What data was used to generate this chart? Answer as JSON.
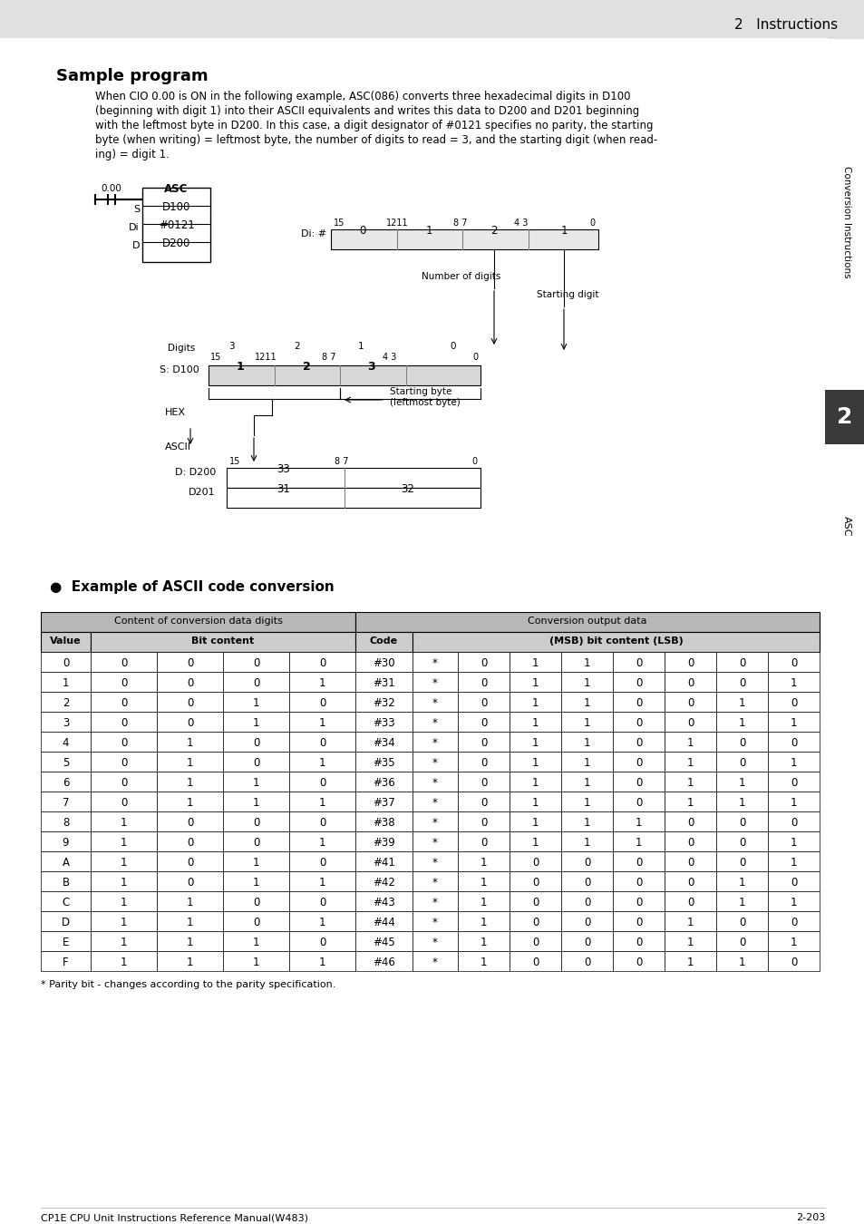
{
  "page_title": "2   Instructions",
  "section_title": "Sample program",
  "body_text_lines": [
    "When CIO 0.00 is ON in the following example, ASC(086) converts three hexadecimal digits in D100",
    "(beginning with digit 1) into their ASCII equivalents and writes this data to D200 and D201 beginning",
    "with the leftmost byte in D200. In this case, a digit designator of #0121 specifies no parity, the starting",
    "byte (when writing) = leftmost byte, the number of digits to read = 3, and the starting digit (when read-",
    "ing) = digit 1."
  ],
  "section2_title": "  Example of ASCII code conversion",
  "table_header1": "Content of conversion data digits",
  "table_header2": "Conversion output data",
  "table_subheader2": "Bit content",
  "table_subheader3": "Code",
  "table_subheader4": "(MSB) bit content (LSB)",
  "table_rows": [
    [
      "0",
      "0",
      "0",
      "0",
      "0",
      "#30",
      "*",
      "0",
      "1",
      "1",
      "0",
      "0",
      "0",
      "0"
    ],
    [
      "1",
      "0",
      "0",
      "0",
      "1",
      "#31",
      "*",
      "0",
      "1",
      "1",
      "0",
      "0",
      "0",
      "1"
    ],
    [
      "2",
      "0",
      "0",
      "1",
      "0",
      "#32",
      "*",
      "0",
      "1",
      "1",
      "0",
      "0",
      "1",
      "0"
    ],
    [
      "3",
      "0",
      "0",
      "1",
      "1",
      "#33",
      "*",
      "0",
      "1",
      "1",
      "0",
      "0",
      "1",
      "1"
    ],
    [
      "4",
      "0",
      "1",
      "0",
      "0",
      "#34",
      "*",
      "0",
      "1",
      "1",
      "0",
      "1",
      "0",
      "0"
    ],
    [
      "5",
      "0",
      "1",
      "0",
      "1",
      "#35",
      "*",
      "0",
      "1",
      "1",
      "0",
      "1",
      "0",
      "1"
    ],
    [
      "6",
      "0",
      "1",
      "1",
      "0",
      "#36",
      "*",
      "0",
      "1",
      "1",
      "0",
      "1",
      "1",
      "0"
    ],
    [
      "7",
      "0",
      "1",
      "1",
      "1",
      "#37",
      "*",
      "0",
      "1",
      "1",
      "0",
      "1",
      "1",
      "1"
    ],
    [
      "8",
      "1",
      "0",
      "0",
      "0",
      "#38",
      "*",
      "0",
      "1",
      "1",
      "1",
      "0",
      "0",
      "0"
    ],
    [
      "9",
      "1",
      "0",
      "0",
      "1",
      "#39",
      "*",
      "0",
      "1",
      "1",
      "1",
      "0",
      "0",
      "1"
    ],
    [
      "A",
      "1",
      "0",
      "1",
      "0",
      "#41",
      "*",
      "1",
      "0",
      "0",
      "0",
      "0",
      "0",
      "1"
    ],
    [
      "B",
      "1",
      "0",
      "1",
      "1",
      "#42",
      "*",
      "1",
      "0",
      "0",
      "0",
      "0",
      "1",
      "0"
    ],
    [
      "C",
      "1",
      "1",
      "0",
      "0",
      "#43",
      "*",
      "1",
      "0",
      "0",
      "0",
      "0",
      "1",
      "1"
    ],
    [
      "D",
      "1",
      "1",
      "0",
      "1",
      "#44",
      "*",
      "1",
      "0",
      "0",
      "0",
      "1",
      "0",
      "0"
    ],
    [
      "E",
      "1",
      "1",
      "1",
      "0",
      "#45",
      "*",
      "1",
      "0",
      "0",
      "0",
      "1",
      "0",
      "1"
    ],
    [
      "F",
      "1",
      "1",
      "1",
      "1",
      "#46",
      "*",
      "1",
      "0",
      "0",
      "0",
      "1",
      "1",
      "0"
    ]
  ],
  "footnote": "* Parity bit - changes according to the parity specification.",
  "footer_left": "CP1E CPU Unit Instructions Reference Manual(W483)",
  "footer_right": "2-203",
  "bg_color": "#ffffff",
  "header_bg": "#e0e0e0",
  "sidebar_color": "#3a3a3a",
  "sidebar2_color": "#404040",
  "table_header_bg": "#b8b8b8",
  "table_subheader_bg": "#cccccc"
}
